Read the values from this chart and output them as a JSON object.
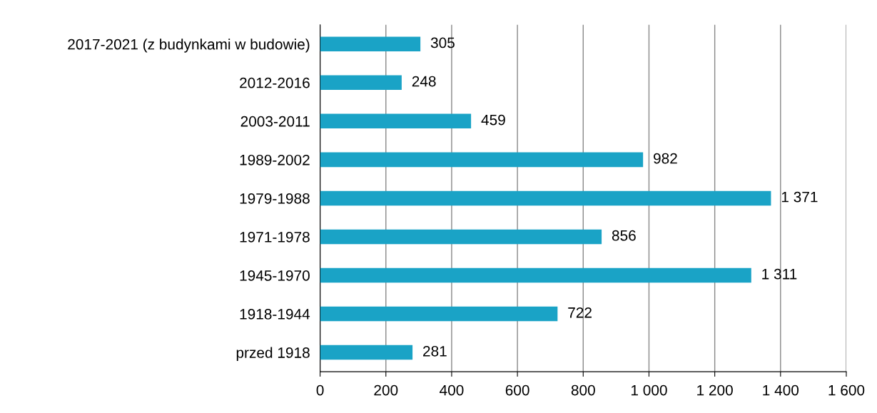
{
  "chart_data": {
    "type": "bar",
    "orientation": "horizontal",
    "categories": [
      "2017-2021 (z budynkami w budowie)",
      "2012-2016",
      "2003-2011",
      "1989-2002",
      "1979-1988",
      "1971-1978",
      "1945-1970",
      "1918-1944",
      "przed 1918"
    ],
    "values": [
      305,
      248,
      459,
      982,
      1371,
      856,
      1311,
      722,
      281
    ],
    "value_labels": [
      "305",
      "248",
      "459",
      "982",
      "1 371",
      "856",
      "1 311",
      "722",
      "281"
    ],
    "color": "#1aa3c6",
    "xlim": [
      0,
      1600
    ],
    "xticks": [
      0,
      200,
      400,
      600,
      800,
      {
        "value": 1000,
        "label": "1 000"
      },
      {
        "value": 1200,
        "label": "1 200"
      },
      {
        "value": 1400,
        "label": "1 400"
      },
      {
        "value": 1600,
        "label": "1 600"
      }
    ],
    "grid": "x"
  }
}
